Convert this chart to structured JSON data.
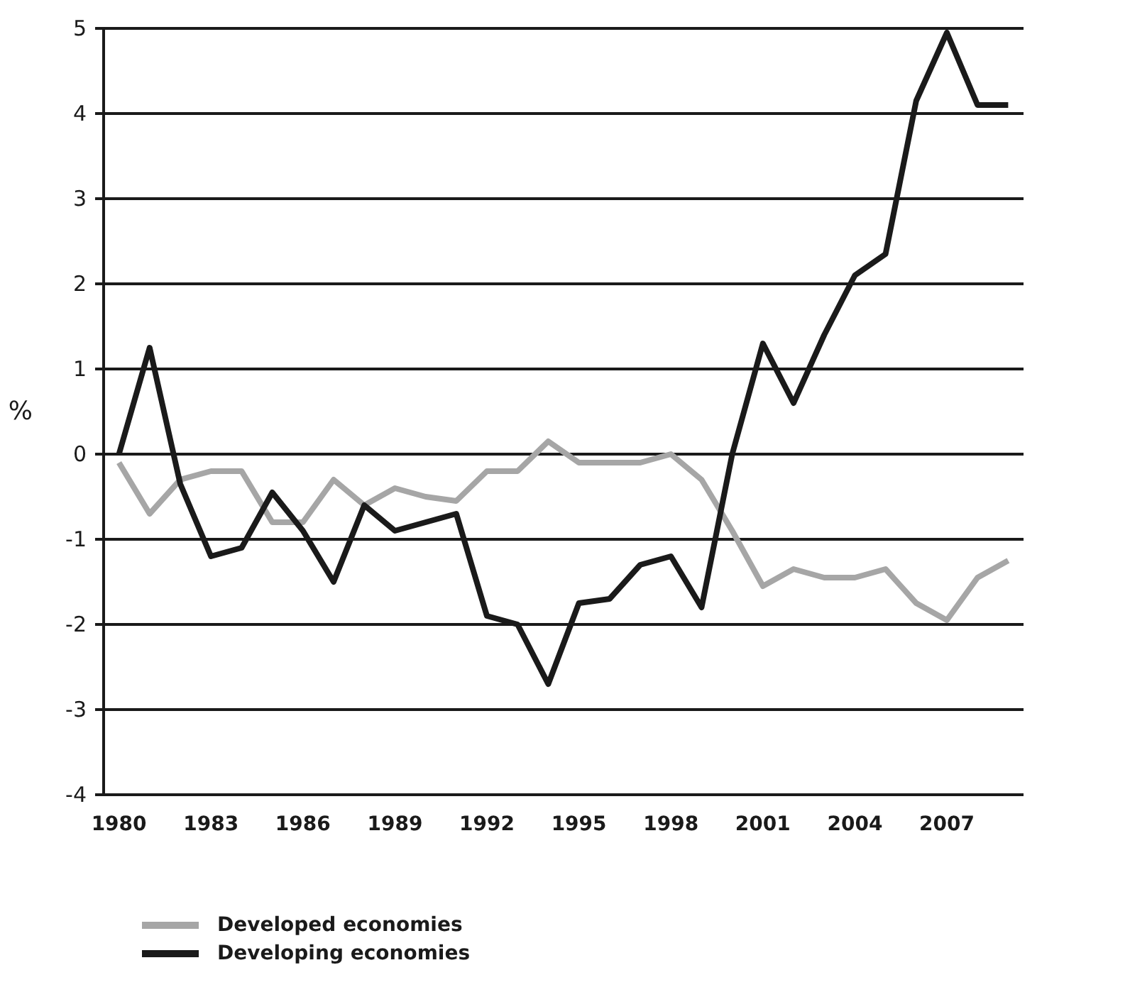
{
  "chart_data": {
    "type": "line",
    "ylabel": "%",
    "categories": [
      "1980",
      null,
      null,
      "1983",
      null,
      null,
      "1986",
      null,
      null,
      "1989",
      null,
      null,
      "1992",
      null,
      null,
      "1995",
      null,
      null,
      "1998",
      null,
      null,
      "2001",
      null,
      null,
      "2004",
      null,
      null,
      "2007",
      null,
      null
    ],
    "series": [
      {
        "name": "Developed economies",
        "color": "#a6a6a6",
        "values": [
          -0.1,
          -0.7,
          -0.3,
          -0.2,
          -0.2,
          -0.8,
          -0.8,
          -0.3,
          -0.6,
          -0.4,
          -0.5,
          -0.55,
          -0.2,
          -0.2,
          0.15,
          -0.1,
          -0.1,
          -0.1,
          0,
          -0.3,
          -0.9,
          -1.55,
          -1.35,
          -1.45,
          -1.45,
          -1.35,
          -1.75,
          -1.95,
          -1.45,
          -1.25
        ]
      },
      {
        "name": "Developing economies",
        "color": "#1a1a1a",
        "values": [
          0,
          1.25,
          -0.35,
          -1.2,
          -1.1,
          -0.45,
          -0.9,
          -1.5,
          -0.6,
          -0.9,
          -0.8,
          -0.7,
          -1.9,
          -2,
          -2.7,
          -1.75,
          -1.7,
          -1.3,
          -1.2,
          -1.8,
          0,
          1.3,
          0.6,
          1.4,
          2.1,
          2.35,
          4.15,
          4.95,
          4.1,
          4.1
        ]
      }
    ],
    "ylim": [
      -4,
      5
    ],
    "yticks": [
      -4,
      -3,
      -2,
      -1,
      0,
      1,
      2,
      3,
      4,
      5
    ],
    "grid": "y",
    "legend": "bottom left",
    "marker": "none",
    "line_style": "solid"
  }
}
